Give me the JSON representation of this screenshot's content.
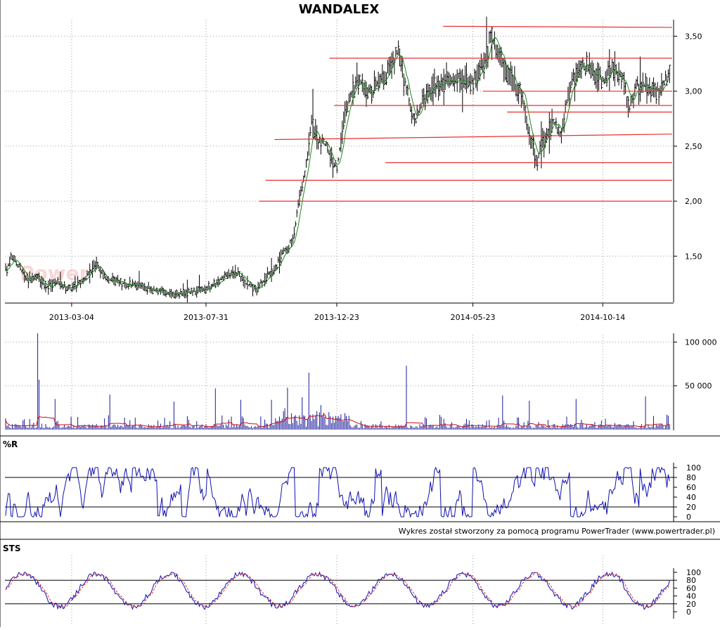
{
  "title": "WANDALEX",
  "credit": "Wykres został stworzony za pomocą programu PowerTrader (www.powertrader.pl)",
  "watermark": "Power",
  "colors": {
    "price": "#000000",
    "price_ma": "#1a8a1a",
    "support_lines": "#e83030",
    "volume_bars": "#1a1a9a",
    "volume_ma": "#d01010",
    "williams_r": "#1010b0",
    "sts_k": "#1010b0",
    "sts_d": "#e03030",
    "grid": "#a0a0a0"
  },
  "chart_data": [
    {
      "panel": "price",
      "type": "ohlc",
      "title": "WANDALEX",
      "date_range": [
        "2012-12-20",
        "2014-12-30"
      ],
      "x_ticks": [
        "2013-03-04",
        "2013-07-31",
        "2013-12-23",
        "2014-05-23",
        "2014-10-14"
      ],
      "y_ticks": [
        "3,50",
        "3,00",
        "2,50",
        "2,00",
        "1,50"
      ],
      "ylim": [
        1.08,
        3.65
      ],
      "grid": true,
      "close_path": [
        [
          "2012-12-20",
          1.35
        ],
        [
          "2012-12-28",
          1.5
        ],
        [
          "2013-01-05",
          1.4
        ],
        [
          "2013-01-15",
          1.28
        ],
        [
          "2013-01-25",
          1.32
        ],
        [
          "2013-02-05",
          1.22
        ],
        [
          "2013-02-15",
          1.28
        ],
        [
          "2013-02-25",
          1.22
        ],
        [
          "2013-03-04",
          1.2
        ],
        [
          "2013-03-20",
          1.32
        ],
        [
          "2013-04-01",
          1.42
        ],
        [
          "2013-04-10",
          1.3
        ],
        [
          "2013-05-01",
          1.25
        ],
        [
          "2013-05-20",
          1.22
        ],
        [
          "2013-06-10",
          1.18
        ],
        [
          "2013-06-25",
          1.15
        ],
        [
          "2013-07-10",
          1.17
        ],
        [
          "2013-07-31",
          1.2
        ],
        [
          "2013-08-15",
          1.28
        ],
        [
          "2013-09-01",
          1.37
        ],
        [
          "2013-09-12",
          1.26
        ],
        [
          "2013-09-25",
          1.2
        ],
        [
          "2013-10-05",
          1.3
        ],
        [
          "2013-10-15",
          1.38
        ],
        [
          "2013-10-25",
          1.55
        ],
        [
          "2013-11-05",
          1.65
        ],
        [
          "2013-11-12",
          2.05
        ],
        [
          "2013-11-18",
          2.25
        ],
        [
          "2013-11-25",
          2.75
        ],
        [
          "2013-12-02",
          2.55
        ],
        [
          "2013-12-12",
          2.5
        ],
        [
          "2013-12-23",
          2.3
        ],
        [
          "2014-01-02",
          2.85
        ],
        [
          "2014-01-15",
          3.1
        ],
        [
          "2014-02-01",
          3.0
        ],
        [
          "2014-02-15",
          3.15
        ],
        [
          "2014-03-01",
          3.35
        ],
        [
          "2014-03-10",
          3.05
        ],
        [
          "2014-03-20",
          2.7
        ],
        [
          "2014-03-27",
          2.88
        ],
        [
          "2014-04-10",
          3.05
        ],
        [
          "2014-04-25",
          3.1
        ],
        [
          "2014-05-10",
          3.15
        ],
        [
          "2014-05-23",
          3.08
        ],
        [
          "2014-06-05",
          3.25
        ],
        [
          "2014-06-12",
          3.5
        ],
        [
          "2014-06-20",
          3.3
        ],
        [
          "2014-07-05",
          3.1
        ],
        [
          "2014-07-15",
          3.0
        ],
        [
          "2014-07-22",
          2.7
        ],
        [
          "2014-08-01",
          2.35
        ],
        [
          "2014-08-10",
          2.55
        ],
        [
          "2014-08-20",
          2.72
        ],
        [
          "2014-08-28",
          2.6
        ],
        [
          "2014-09-08",
          3.05
        ],
        [
          "2014-09-20",
          3.25
        ],
        [
          "2014-10-01",
          3.2
        ],
        [
          "2014-10-14",
          3.1
        ],
        [
          "2014-10-25",
          3.2
        ],
        [
          "2014-11-05",
          3.15
        ],
        [
          "2014-11-12",
          2.8
        ],
        [
          "2014-11-20",
          3.05
        ],
        [
          "2014-12-01",
          3.05
        ],
        [
          "2014-12-15",
          3.0
        ],
        [
          "2014-12-30",
          3.18
        ]
      ],
      "horizontal_lines": [
        {
          "from": "2014-04-20",
          "to": "2014-12-30",
          "y": [
            3.59,
            3.58
          ]
        },
        {
          "from": "2013-12-15",
          "to": "2014-12-30",
          "y": [
            3.3,
            3.3
          ]
        },
        {
          "from": "2014-06-03",
          "to": "2014-12-30",
          "y": [
            3.0,
            3.0
          ]
        },
        {
          "from": "2013-12-20",
          "to": "2014-12-30",
          "y": [
            2.87,
            2.87
          ]
        },
        {
          "from": "2014-06-30",
          "to": "2014-12-30",
          "y": [
            2.81,
            2.81
          ]
        },
        {
          "from": "2013-10-15",
          "to": "2014-12-30",
          "y": [
            2.56,
            2.61
          ]
        },
        {
          "from": "2014-02-15",
          "to": "2014-12-30",
          "y": [
            2.35,
            2.35
          ]
        },
        {
          "from": "2013-10-05",
          "to": "2014-12-30",
          "y": [
            2.19,
            2.19
          ]
        },
        {
          "from": "2013-09-28",
          "to": "2014-12-30",
          "y": [
            2.0,
            2.0
          ]
        }
      ]
    },
    {
      "panel": "volume",
      "type": "bar",
      "y_ticks": [
        "100 000",
        "50 000"
      ],
      "ylim": [
        0,
        110000
      ],
      "grid": true,
      "spikes": [
        [
          "2013-01-25",
          110000
        ],
        [
          "2013-01-27",
          57000
        ],
        [
          "2013-02-14",
          35000
        ],
        [
          "2013-04-15",
          40000
        ],
        [
          "2013-06-25",
          32000
        ],
        [
          "2013-08-10",
          47000
        ],
        [
          "2013-09-08",
          34000
        ],
        [
          "2013-10-12",
          34000
        ],
        [
          "2013-10-30",
          48000
        ],
        [
          "2013-11-14",
          37000
        ],
        [
          "2013-11-22",
          65000
        ],
        [
          "2013-12-05",
          28000
        ],
        [
          "2014-03-10",
          73000
        ],
        [
          "2014-06-25",
          39000
        ],
        [
          "2014-07-25",
          33000
        ],
        [
          "2014-09-15",
          35000
        ],
        [
          "2014-12-01",
          38000
        ]
      ]
    },
    {
      "panel": "williams_r",
      "type": "line",
      "label": "%R",
      "y_ticks": [
        "100",
        "80",
        "60",
        "40",
        "20",
        "0"
      ],
      "levels": [
        80,
        20
      ],
      "ylim": [
        0,
        100
      ]
    },
    {
      "panel": "sts",
      "type": "line",
      "label": "STS",
      "y_ticks": [
        "100",
        "80",
        "60",
        "40",
        "20",
        "0"
      ],
      "levels": [
        80,
        20
      ],
      "ylim": [
        0,
        100
      ]
    }
  ]
}
